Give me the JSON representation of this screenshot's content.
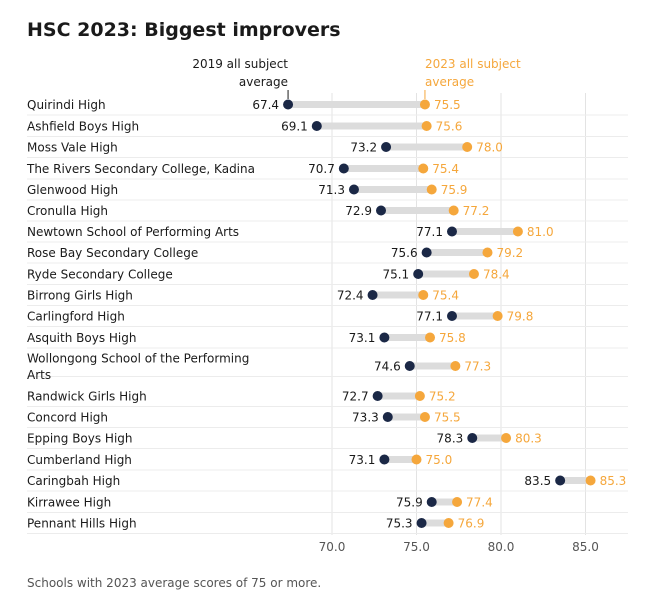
{
  "chart_data": {
    "type": "scatter",
    "title": "HSC 2023: Biggest improvers",
    "series": [
      {
        "name": "2019 all subject average",
        "color": "#1b2846"
      },
      {
        "name": "2023 all subject average",
        "color": "#f5a73c"
      }
    ],
    "x_ticks": [
      70.0,
      75.0,
      80.0,
      85.0
    ],
    "x_tick_labels": [
      "70.0",
      "75.0",
      "80.0",
      "85.0"
    ],
    "xlim": [
      66.0,
      87.5
    ],
    "grid": true,
    "footnote": "Schools with 2023 average scores of 75 or more.",
    "rows": [
      {
        "name": [
          "Quirindi High"
        ],
        "v2019": 67.4,
        "v2023": 75.5,
        "l2019": "67.4",
        "l2023": "75.5"
      },
      {
        "name": [
          "Ashfield Boys High"
        ],
        "v2019": 69.1,
        "v2023": 75.6,
        "l2019": "69.1",
        "l2023": "75.6"
      },
      {
        "name": [
          "Moss Vale High"
        ],
        "v2019": 73.2,
        "v2023": 78.0,
        "l2019": "73.2",
        "l2023": "78.0"
      },
      {
        "name": [
          "The Rivers Secondary College, Kadina"
        ],
        "v2019": 70.7,
        "v2023": 75.4,
        "l2019": "70.7",
        "l2023": "75.4"
      },
      {
        "name": [
          "Glenwood High"
        ],
        "v2019": 71.3,
        "v2023": 75.9,
        "l2019": "71.3",
        "l2023": "75.9"
      },
      {
        "name": [
          "Cronulla High"
        ],
        "v2019": 72.9,
        "v2023": 77.2,
        "l2019": "72.9",
        "l2023": "77.2"
      },
      {
        "name": [
          "Newtown School of Performing Arts"
        ],
        "v2019": 77.1,
        "v2023": 81.0,
        "l2019": "77.1",
        "l2023": "81.0"
      },
      {
        "name": [
          "Rose Bay Secondary College"
        ],
        "v2019": 75.6,
        "v2023": 79.2,
        "l2019": "75.6",
        "l2023": "79.2"
      },
      {
        "name": [
          "Ryde Secondary College"
        ],
        "v2019": 75.1,
        "v2023": 78.4,
        "l2019": "75.1",
        "l2023": "78.4"
      },
      {
        "name": [
          "Birrong Girls High"
        ],
        "v2019": 72.4,
        "v2023": 75.4,
        "l2019": "72.4",
        "l2023": "75.4"
      },
      {
        "name": [
          "Carlingford High"
        ],
        "v2019": 77.1,
        "v2023": 79.8,
        "l2019": "77.1",
        "l2023": "79.8"
      },
      {
        "name": [
          "Asquith Boys High"
        ],
        "v2019": 73.1,
        "v2023": 75.8,
        "l2019": "73.1",
        "l2023": "75.8"
      },
      {
        "name": [
          "Wollongong School of the Performing",
          "Arts"
        ],
        "v2019": 74.6,
        "v2023": 77.3,
        "l2019": "74.6",
        "l2023": "77.3"
      },
      {
        "name": [
          "Randwick Girls High"
        ],
        "v2019": 72.7,
        "v2023": 75.2,
        "l2019": "72.7",
        "l2023": "75.2"
      },
      {
        "name": [
          "Concord High"
        ],
        "v2019": 73.3,
        "v2023": 75.5,
        "l2019": "73.3",
        "l2023": "75.5"
      },
      {
        "name": [
          "Epping Boys High"
        ],
        "v2019": 78.3,
        "v2023": 80.3,
        "l2019": "78.3",
        "l2023": "80.3"
      },
      {
        "name": [
          "Cumberland High"
        ],
        "v2019": 73.1,
        "v2023": 75.0,
        "l2019": "73.1",
        "l2023": "75.0"
      },
      {
        "name": [
          "Caringbah High"
        ],
        "v2019": 83.5,
        "v2023": 85.3,
        "l2019": "83.5",
        "l2023": "85.3"
      },
      {
        "name": [
          "Kirrawee High"
        ],
        "v2019": 75.9,
        "v2023": 77.4,
        "l2019": "75.9",
        "l2023": "77.4"
      },
      {
        "name": [
          "Pennant Hills High"
        ],
        "v2019": 75.3,
        "v2023": 76.9,
        "l2019": "75.3",
        "l2023": "76.9"
      }
    ]
  },
  "header_2019": [
    "2019 all subject",
    "average"
  ],
  "header_2023": [
    "2023 all subject",
    "average"
  ]
}
